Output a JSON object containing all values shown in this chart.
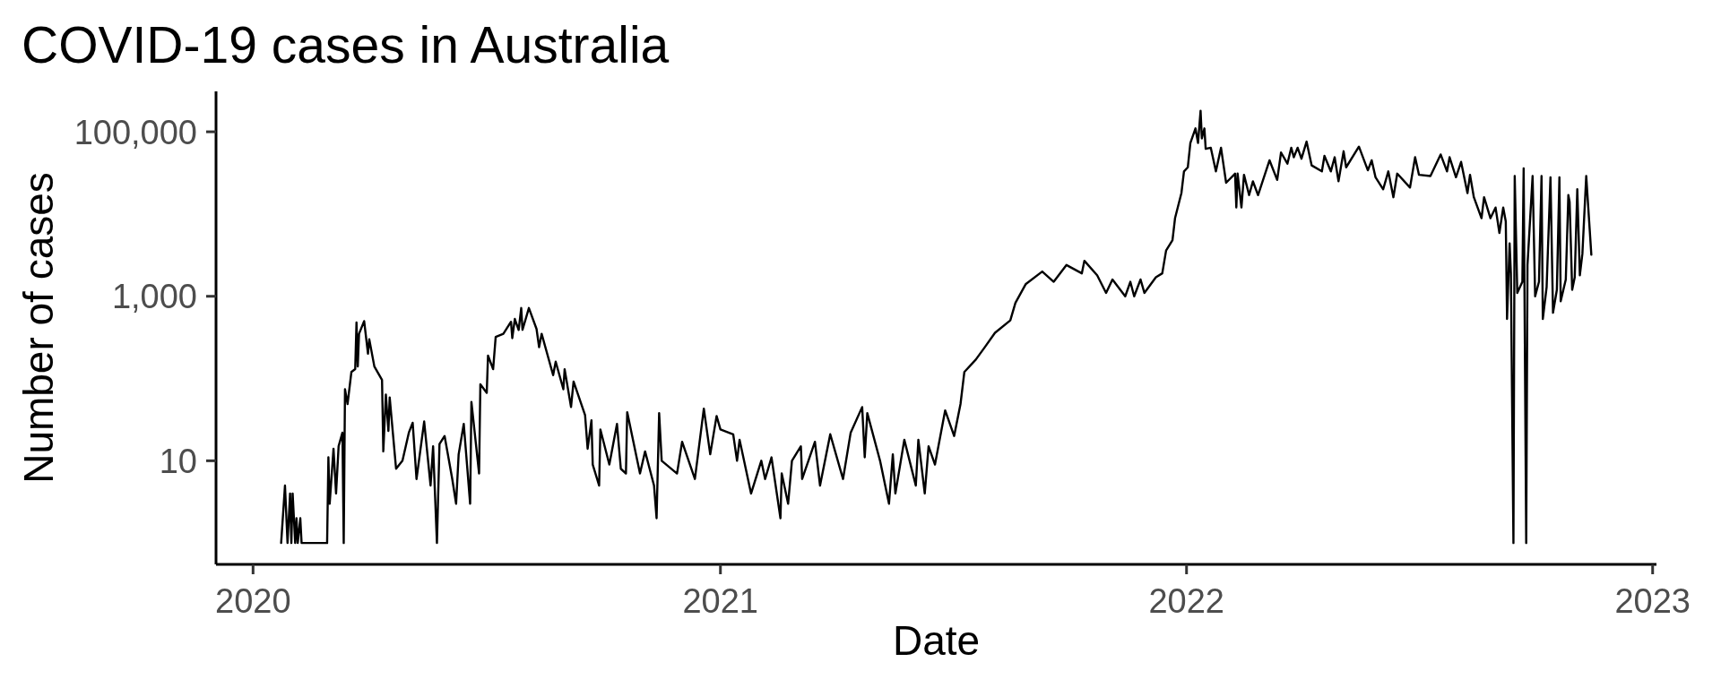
{
  "chart_data": {
    "type": "line",
    "title": "COVID-19 cases in Australia",
    "xlabel": "Date",
    "ylabel": "Number of cases",
    "x": [
      "2020-01-23",
      "2020-01-26",
      "2020-01-28",
      "2020-01-30",
      "2020-01-31",
      "2020-02-01",
      "2020-02-03",
      "2020-02-04",
      "2020-02-05",
      "2020-02-07",
      "2020-02-08",
      "2020-02-28",
      "2020-02-29",
      "2020-03-01",
      "2020-03-04",
      "2020-03-06",
      "2020-03-08",
      "2020-03-11",
      "2020-03-12",
      "2020-03-13",
      "2020-03-15",
      "2020-03-18",
      "2020-03-21",
      "2020-03-22",
      "2020-03-23",
      "2020-03-24",
      "2020-03-28",
      "2020-03-31",
      "2020-04-01",
      "2020-04-05",
      "2020-04-11",
      "2020-04-12",
      "2020-04-14",
      "2020-04-16",
      "2020-04-17",
      "2020-04-22",
      "2020-04-27",
      "2020-05-02",
      "2020-05-05",
      "2020-05-08",
      "2020-05-14",
      "2020-05-19",
      "2020-05-21",
      "2020-05-24",
      "2020-05-26",
      "2020-05-30",
      "2020-06-05",
      "2020-06-08",
      "2020-06-10",
      "2020-06-14",
      "2020-06-19",
      "2020-06-20",
      "2020-06-26",
      "2020-06-27",
      "2020-07-02",
      "2020-07-03",
      "2020-07-07",
      "2020-07-09",
      "2020-07-15",
      "2020-07-21",
      "2020-07-22",
      "2020-07-24",
      "2020-07-27",
      "2020-07-29",
      "2020-07-30",
      "2020-08-04",
      "2020-08-10",
      "2020-08-12",
      "2020-08-14",
      "2020-08-23",
      "2020-08-25",
      "2020-08-31",
      "2020-09-01",
      "2020-09-06",
      "2020-09-08",
      "2020-09-17",
      "2020-09-19",
      "2020-09-22",
      "2020-09-23",
      "2020-09-28",
      "2020-09-29",
      "2020-10-06",
      "2020-10-12",
      "2020-10-15",
      "2020-10-19",
      "2020-10-20",
      "2020-10-30",
      "2020-11-03",
      "2020-11-10",
      "2020-11-12",
      "2020-11-14",
      "2020-11-16",
      "2020-11-28",
      "2020-12-02",
      "2020-12-12",
      "2020-12-19",
      "2020-12-24",
      "2020-12-29",
      "2021-01-01",
      "2021-01-11",
      "2021-01-14",
      "2021-01-16",
      "2021-01-25",
      "2021-02-02",
      "2021-02-05",
      "2021-02-10",
      "2021-02-17",
      "2021-02-18",
      "2021-02-23",
      "2021-02-26",
      "2021-03-05",
      "2021-03-06",
      "2021-03-16",
      "2021-03-20",
      "2021-03-28",
      "2021-04-07",
      "2021-04-13",
      "2021-04-22",
      "2021-04-24",
      "2021-04-26",
      "2021-05-06",
      "2021-05-13",
      "2021-05-16",
      "2021-05-18",
      "2021-05-25",
      "2021-06-03",
      "2021-06-05",
      "2021-06-10",
      "2021-06-13",
      "2021-06-18",
      "2021-06-26",
      "2021-07-03",
      "2021-07-08",
      "2021-07-11",
      "2021-07-20",
      "2021-07-27",
      "2021-08-04",
      "2021-08-16",
      "2021-08-20",
      "2021-08-28",
      "2021-09-10",
      "2021-09-19",
      "2021-09-29",
      "2021-10-11",
      "2021-10-13",
      "2021-10-23",
      "2021-10-30",
      "2021-11-04",
      "2021-11-14",
      "2021-11-18",
      "2021-11-21",
      "2021-11-26",
      "2021-11-29",
      "2021-12-08",
      "2021-12-13",
      "2021-12-16",
      "2021-12-21",
      "2021-12-23",
      "2021-12-28",
      "2021-12-30",
      "2022-01-02",
      "2022-01-04",
      "2022-01-08",
      "2022-01-10",
      "2022-01-12",
      "2022-01-13",
      "2022-01-15",
      "2022-01-16",
      "2022-01-20",
      "2022-01-24",
      "2022-01-28",
      "2022-02-01",
      "2022-02-08",
      "2022-02-09",
      "2022-02-10",
      "2022-02-13",
      "2022-02-15",
      "2022-02-19",
      "2022-02-22",
      "2022-02-26",
      "2022-03-07",
      "2022-03-13",
      "2022-03-16",
      "2022-03-21",
      "2022-03-24",
      "2022-03-26",
      "2022-03-29",
      "2022-04-01",
      "2022-04-05",
      "2022-04-09",
      "2022-04-17",
      "2022-04-19",
      "2022-04-24",
      "2022-04-27",
      "2022-04-30",
      "2022-05-04",
      "2022-05-06",
      "2022-05-16",
      "2022-05-23",
      "2022-05-26",
      "2022-05-29",
      "2022-06-04",
      "2022-06-08",
      "2022-06-12",
      "2022-06-15",
      "2022-06-25",
      "2022-06-29",
      "2022-07-02",
      "2022-07-11",
      "2022-07-19",
      "2022-07-24",
      "2022-07-26",
      "2022-07-31",
      "2022-08-04",
      "2022-08-09",
      "2022-08-11",
      "2022-08-14",
      "2022-08-20",
      "2022-08-22",
      "2022-08-27",
      "2022-08-31",
      "2022-09-03",
      "2022-09-06",
      "2022-09-08",
      "2022-09-09",
      "2022-09-11",
      "2022-09-12",
      "2022-09-14",
      "2022-09-15",
      "2022-09-17",
      "2022-09-21",
      "2022-09-22",
      "2022-09-24",
      "2022-09-25",
      "2022-09-29",
      "2022-10-01",
      "2022-10-04",
      "2022-10-06",
      "2022-10-07",
      "2022-10-10",
      "2022-10-13",
      "2022-10-15",
      "2022-10-18",
      "2022-10-20",
      "2022-10-21",
      "2022-10-25",
      "2022-10-27",
      "2022-10-28",
      "2022-10-30",
      "2022-11-01",
      "2022-11-03",
      "2022-11-05",
      "2022-11-07",
      "2022-11-10",
      "2022-11-14"
    ],
    "values": [
      1,
      5,
      1,
      4,
      1,
      4,
      1,
      2,
      1,
      2,
      1,
      1,
      11,
      3,
      14,
      4,
      15,
      22,
      1,
      74,
      49,
      120,
      130,
      480,
      140,
      350,
      500,
      200,
      300,
      140,
      96,
      13,
      64,
      23,
      59,
      8,
      10,
      22,
      29,
      6,
      30,
      5,
      15,
      1,
      16,
      20,
      6,
      3,
      12,
      28,
      3,
      52,
      7,
      85,
      67,
      190,
      130,
      320,
      350,
      490,
      310,
      530,
      390,
      720,
      390,
      720,
      400,
      240,
      350,
      110,
      160,
      74,
      130,
      45,
      92,
      36,
      14,
      31,
      9,
      5,
      24,
      9,
      28,
      8,
      7,
      39,
      7,
      13,
      5,
      2,
      38,
      10,
      7,
      17,
      6,
      43,
      12,
      35,
      24,
      21,
      10,
      18,
      4,
      10,
      6,
      11,
      2,
      7,
      3,
      10,
      15,
      6,
      17,
      5,
      21,
      6,
      22,
      45,
      11,
      38,
      10,
      3,
      12,
      4,
      18,
      5,
      18,
      4,
      15,
      9,
      41,
      20,
      49,
      120,
      170,
      240,
      360,
      510,
      830,
      1400,
      2000,
      1500,
      2400,
      1900,
      2700,
      1800,
      1100,
      1600,
      1000,
      1500,
      1000,
      1600,
      1100,
      1700,
      1900,
      3600,
      4800,
      8900,
      18000,
      33000,
      37000,
      73000,
      110000,
      73000,
      180000,
      83000,
      110000,
      62000,
      64000,
      33000,
      64000,
      24000,
      31000,
      12000,
      31000,
      12000,
      30000,
      17000,
      25000,
      17000,
      45000,
      26000,
      56000,
      41000,
      64000,
      49000,
      64000,
      47000,
      76000,
      39000,
      33000,
      51000,
      33000,
      49000,
      25000,
      58000,
      37000,
      66000,
      34000,
      45000,
      28000,
      20000,
      33000,
      16000,
      31000,
      21000,
      49000,
      30000,
      29000,
      53000,
      33000,
      49000,
      28000,
      43000,
      18000,
      30000,
      16000,
      8900,
      16000,
      8900,
      12000,
      5900,
      12000,
      8100,
      530,
      4400,
      1900,
      1,
      29000,
      1100,
      1500,
      36000,
      1,
      2400,
      29000,
      1000,
      1500,
      29000,
      530,
      1300,
      28000,
      630,
      1200,
      28000,
      870,
      1600,
      17000,
      14000,
      1200,
      1700,
      20000,
      1800,
      3300,
      29000,
      3200
    ],
    "color": "#000000",
    "xlim": [
      "2019-12-03",
      "2023-01-04"
    ],
    "xticks": [
      "2020",
      "2021",
      "2022",
      "2023"
    ],
    "ylim": [
      0.55,
      310000
    ],
    "yticks": [
      10,
      {
        "value": 1000,
        "label": "1,000"
      },
      {
        "value": 100000,
        "label": "100,000"
      }
    ],
    "log": true
  }
}
